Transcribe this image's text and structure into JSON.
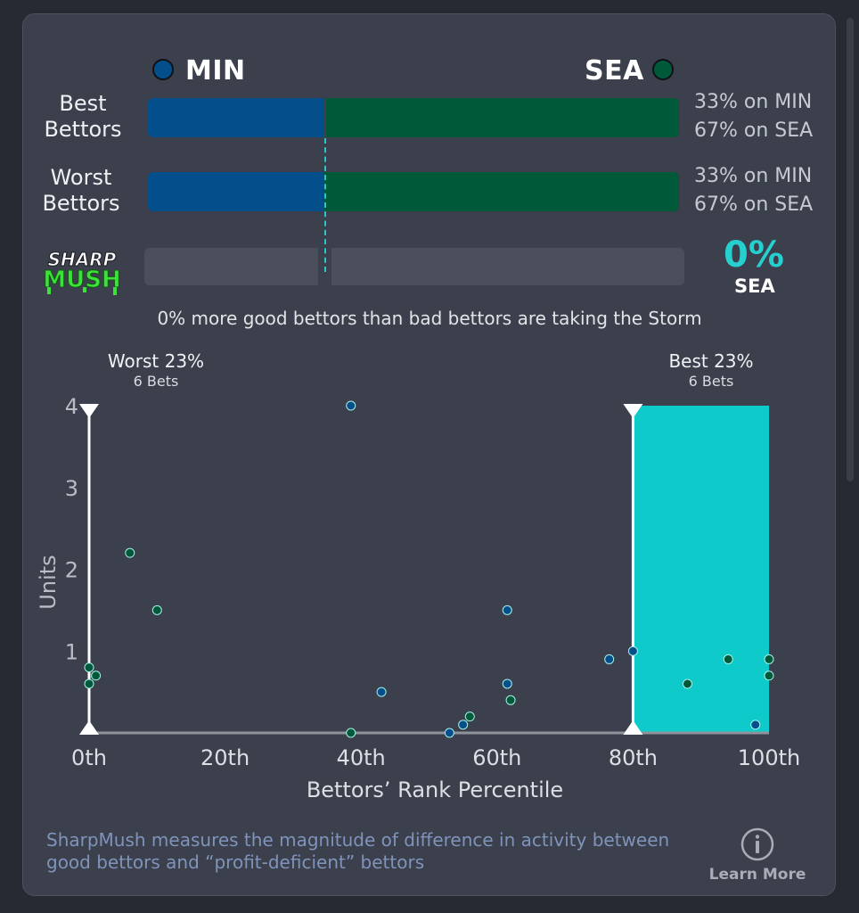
{
  "header": {
    "away_team": "MIN",
    "home_team": "SEA",
    "away_color": "#034f8b",
    "home_color": "#005a3a"
  },
  "rows": [
    {
      "label_line1": "Best",
      "label_line2": "Bettors",
      "min_pct": 33,
      "min_text": "33% on MIN",
      "sea_text": "67% on SEA"
    },
    {
      "label_line1": "Worst",
      "label_line2": "Bettors",
      "min_pct": 33,
      "min_text": "33% on MIN",
      "sea_text": "67% on SEA"
    }
  ],
  "sharpmush": {
    "logo_line1": "SHARP",
    "logo_line2": "MUSH",
    "value": "0%",
    "team": "SEA",
    "accent": "#26d0cf"
  },
  "summary": "0% more good bettors than bad bettors are taking the Storm",
  "worst_caption": {
    "title": "Worst 23%",
    "bets": "6 Bets"
  },
  "best_caption": {
    "title": "Best 23%",
    "bets": "6 Bets"
  },
  "chart_data": {
    "type": "scatter",
    "xlabel": "Bettors’ Rank Percentile",
    "ylabel": "Units",
    "xlim": [
      0,
      100
    ],
    "ylim": [
      0,
      4
    ],
    "x_ticks": [
      "0th",
      "20th",
      "40th",
      "60th",
      "80th",
      "100th"
    ],
    "y_ticks": [
      "1",
      "2",
      "3",
      "4"
    ],
    "highlight_range": [
      80,
      100
    ],
    "highlight_color": "#0ecacb",
    "series": [
      {
        "color": "#034f8b",
        "points": [
          [
            38.5,
            4.0
          ],
          [
            43,
            0.5
          ],
          [
            53,
            0
          ],
          [
            55,
            0.1
          ],
          [
            61.5,
            1.5
          ],
          [
            61.5,
            0.6
          ],
          [
            76.5,
            0.9
          ],
          [
            80,
            1.0
          ],
          [
            98,
            0.1
          ]
        ]
      },
      {
        "color": "#005a3a",
        "points": [
          [
            6,
            2.2
          ],
          [
            10,
            1.5
          ],
          [
            0,
            0.8
          ],
          [
            1,
            0.7
          ],
          [
            0,
            0.6
          ],
          [
            38.5,
            0
          ],
          [
            56,
            0.2
          ],
          [
            62,
            0.4
          ],
          [
            88,
            0.6
          ],
          [
            94,
            0.9
          ],
          [
            100,
            0.9
          ],
          [
            100,
            0.7
          ]
        ]
      }
    ]
  },
  "footer": {
    "text": "SharpMush measures the magnitude of difference in activity between good bettors and “profit-deficient” bettors",
    "learn_more": "Learn More"
  }
}
